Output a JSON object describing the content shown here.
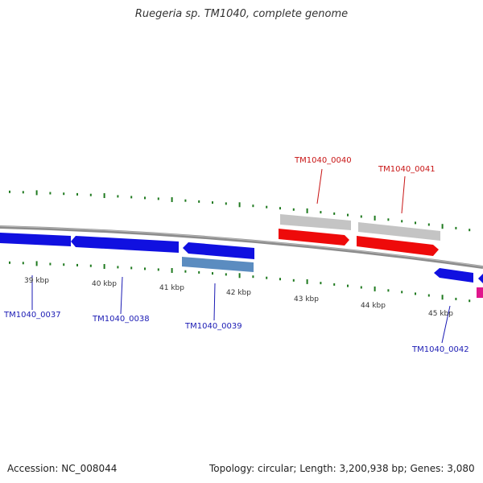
{
  "title": "Ruegeria sp. TM1040, complete genome",
  "footer": {
    "accession": "Accession: NC_008044",
    "summary": "Topology: circular; Length: 3,200,938 bp; Genes: 3,080"
  },
  "colors": {
    "backbone": "#8c8c8c",
    "tick": "#1f7a1f",
    "reverse_gene": "#1010e0",
    "reverse_selected_gene": "#5b8cc0",
    "forward_gene": "#ee0a0a",
    "forward_gene_shadow": "#c4c4c4",
    "pink_gene": "#e0168c",
    "label_blue": "#1a1ab4",
    "label_red": "#c81414"
  },
  "scale_labels": [
    "39 kbp",
    "40 kbp",
    "41 kbp",
    "42 kbp",
    "43 kbp",
    "44 kbp",
    "45 kbp"
  ],
  "gene_labels": [
    {
      "text": "TM1040_0037",
      "strand": "reverse"
    },
    {
      "text": "TM1040_0038",
      "strand": "reverse"
    },
    {
      "text": "TM1040_0039",
      "strand": "reverse"
    },
    {
      "text": "TM1040_0040",
      "strand": "forward"
    },
    {
      "text": "TM1040_0041",
      "strand": "forward"
    },
    {
      "text": "TM1040_0042",
      "strand": "reverse"
    }
  ]
}
